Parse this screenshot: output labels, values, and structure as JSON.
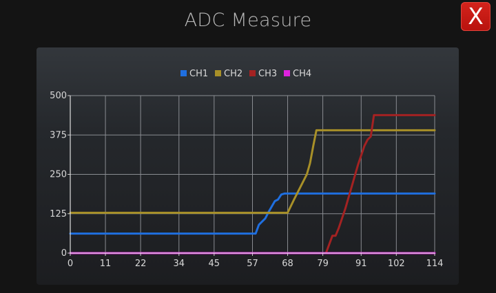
{
  "header": {
    "title": "ADC Measure",
    "close_label": "X"
  },
  "chart_data": {
    "type": "line",
    "title": "",
    "xlabel": "",
    "ylabel": "",
    "xlim": [
      0,
      114
    ],
    "ylim": [
      0,
      500
    ],
    "x_ticks": [
      "0",
      "11",
      "22",
      "34",
      "45",
      "57",
      "68",
      "79",
      "91",
      "102",
      "114"
    ],
    "y_ticks": [
      "0",
      "125",
      "250",
      "375",
      "500"
    ],
    "grid": true,
    "legend_position": "top-center",
    "series": [
      {
        "name": "CH1",
        "color": "#1f6fe0",
        "x": [
          0,
          58,
          59,
          61,
          62,
          64,
          65,
          66,
          67,
          114
        ],
        "y": [
          62,
          62,
          90,
          110,
          130,
          165,
          170,
          186,
          189,
          189
        ]
      },
      {
        "name": "CH2",
        "color": "#a89028",
        "x": [
          0,
          68,
          70,
          72,
          74,
          75,
          76,
          77,
          114
        ],
        "y": [
          128,
          128,
          170,
          210,
          250,
          285,
          340,
          390,
          390
        ]
      },
      {
        "name": "CH3",
        "color": "#a42222",
        "x": [
          80,
          82,
          83,
          84,
          86,
          88,
          90,
          92,
          93,
          94,
          95,
          114
        ],
        "y": [
          0,
          55,
          55,
          80,
          140,
          210,
          280,
          340,
          360,
          370,
          438,
          438
        ]
      },
      {
        "name": "CH4",
        "color": "#dd22dd",
        "x": [
          0,
          114
        ],
        "y": [
          0,
          0
        ]
      }
    ]
  }
}
